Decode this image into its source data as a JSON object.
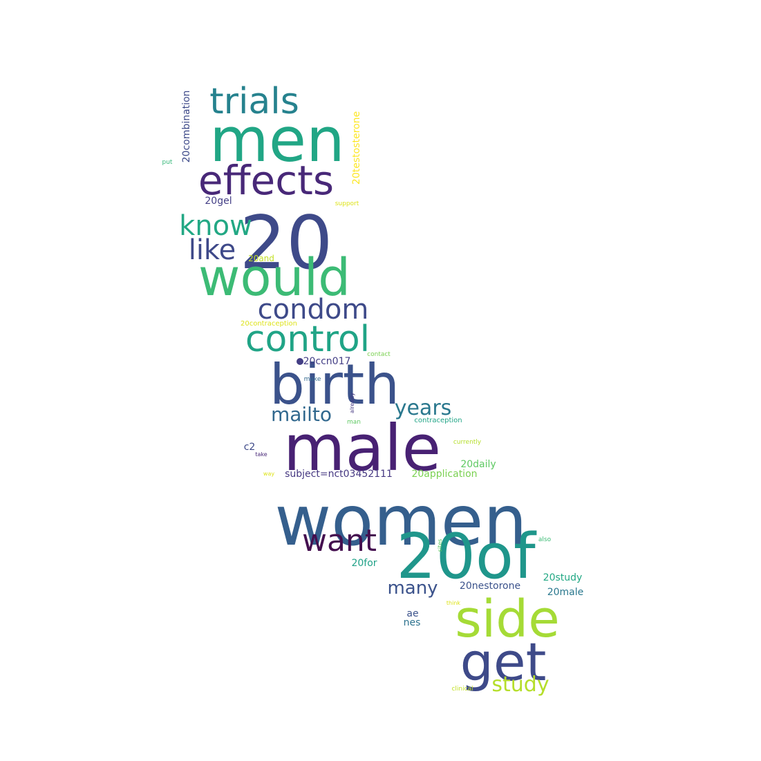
{
  "words": [
    {
      "text": "men",
      "color": "#21a685"
    },
    {
      "text": "20",
      "color": "#3e4a89"
    },
    {
      "text": "would",
      "color": "#3cbb75"
    },
    {
      "text": "women",
      "color": "#355f8d"
    },
    {
      "text": "male",
      "color": "#482173"
    },
    {
      "text": "20of",
      "color": "#1f968b"
    },
    {
      "text": "birth",
      "color": "#3b528b"
    },
    {
      "text": "side",
      "color": "#a5db36"
    },
    {
      "text": "get",
      "color": "#3e4a89"
    },
    {
      "text": "effects",
      "color": "#482878"
    },
    {
      "text": "trials",
      "color": "#26828e"
    },
    {
      "text": "control",
      "color": "#20a486"
    },
    {
      "text": "condom",
      "color": "#3e4a89"
    },
    {
      "text": "know",
      "color": "#22a884"
    },
    {
      "text": "like",
      "color": "#3e4989"
    },
    {
      "text": "want",
      "color": "#440f4f"
    },
    {
      "text": "mailto",
      "color": "#31688e"
    },
    {
      "text": "years",
      "color": "#2a788e"
    },
    {
      "text": "study",
      "color": "#b5de2b"
    },
    {
      "text": "many",
      "color": "#3b528b"
    },
    {
      "text": "subject=nct03452111",
      "color": "#453781"
    },
    {
      "text": "20application",
      "color": "#7ad151"
    },
    {
      "text": "20ccn017",
      "color": "#433e85"
    },
    {
      "text": "20combination",
      "color": "#3e4a89"
    },
    {
      "text": "20testosterone",
      "color": "#fde725"
    },
    {
      "text": "20daily",
      "color": "#5ec962"
    },
    {
      "text": "20nestorone",
      "color": "#3b528b"
    },
    {
      "text": "20study",
      "color": "#22a884"
    },
    {
      "text": "20male",
      "color": "#2a788e"
    },
    {
      "text": "20for",
      "color": "#1fa187"
    },
    {
      "text": "20gel",
      "color": "#433e85"
    },
    {
      "text": "20and",
      "color": "#c2df23"
    },
    {
      "text": "20contraception",
      "color": "#dde318"
    },
    {
      "text": "c2",
      "color": "#3e4a89"
    },
    {
      "text": "ae",
      "color": "#3b528b"
    },
    {
      "text": "nes",
      "color": "#2c728e"
    },
    {
      "text": "support",
      "color": "#dde318"
    },
    {
      "text": "put",
      "color": "#35b779"
    },
    {
      "text": "contact",
      "color": "#7ad151"
    },
    {
      "text": "make",
      "color": "#31688e"
    },
    {
      "text": "already",
      "color": "#453781"
    },
    {
      "text": "man",
      "color": "#5ec962"
    },
    {
      "text": "contraception",
      "color": "#20a486"
    },
    {
      "text": "currently",
      "color": "#b5de2b"
    },
    {
      "text": "take",
      "color": "#482878"
    },
    {
      "text": "way",
      "color": "#dde318"
    },
    {
      "text": "also",
      "color": "#3cbb75"
    },
    {
      "text": "sites",
      "color": "#5ec962"
    },
    {
      "text": "think",
      "color": "#dde318"
    },
    {
      "text": "clinical",
      "color": "#c2df23"
    }
  ]
}
